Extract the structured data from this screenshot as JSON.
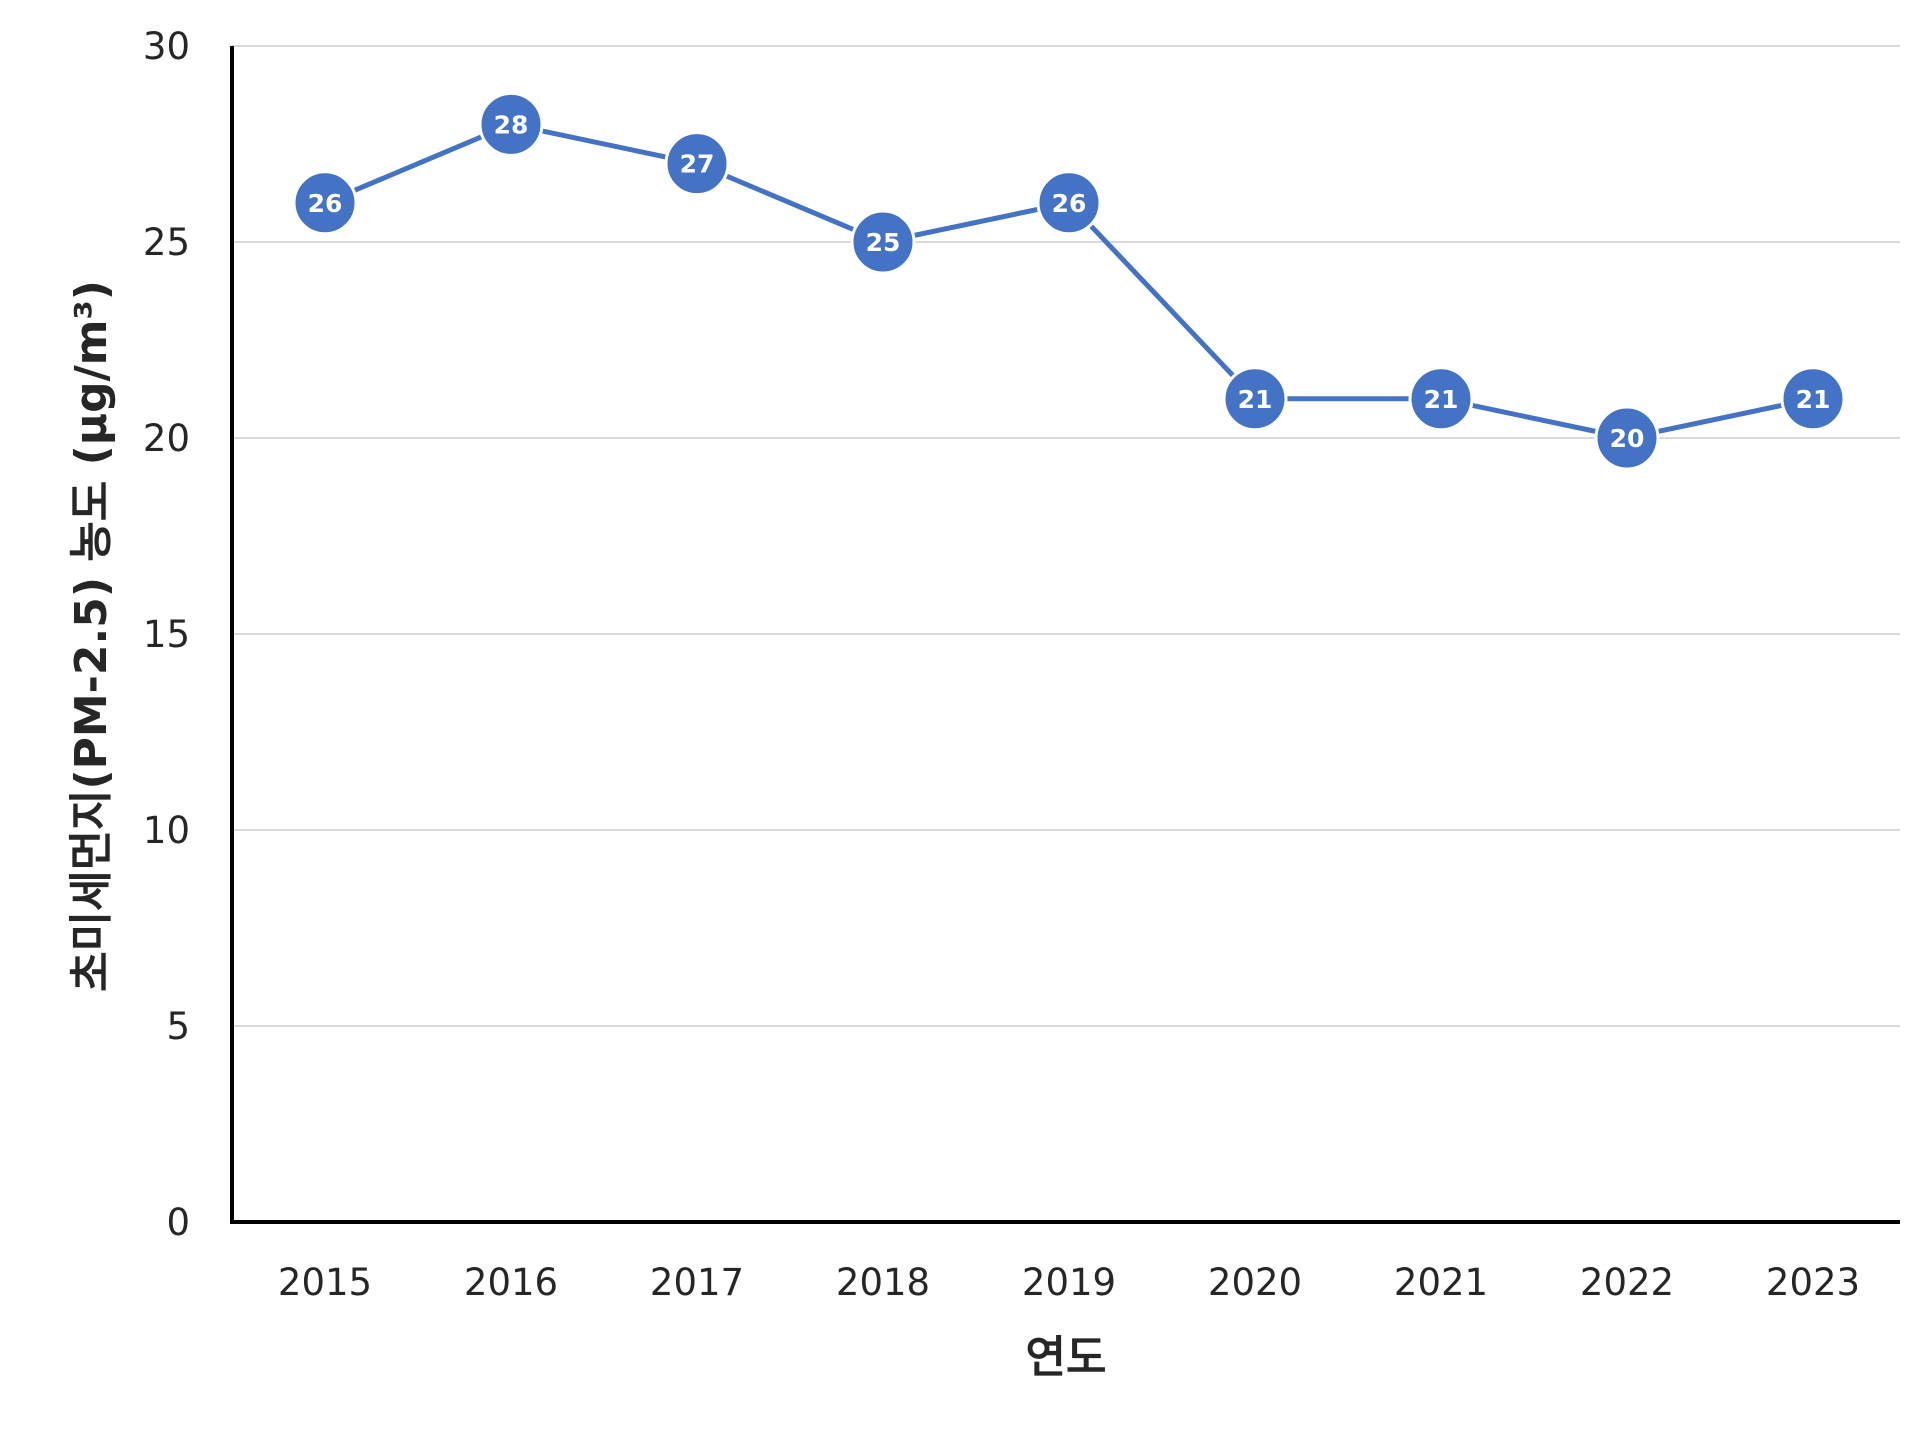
{
  "chart_data": {
    "type": "line",
    "categories": [
      "2015",
      "2016",
      "2017",
      "2018",
      "2019",
      "2020",
      "2021",
      "2022",
      "2023"
    ],
    "series": [
      {
        "values": [
          26,
          28,
          27,
          25,
          26,
          21,
          21,
          20,
          21
        ],
        "data_labels": [
          "26",
          "28",
          "27",
          "25",
          "26",
          "21",
          "21",
          "20",
          "21"
        ],
        "color": "#4472C4"
      }
    ],
    "xlabel": "연도",
    "ylabel": "초미세먼지(PM-2.5) 농도 (μg/m³)",
    "ylim": [
      0,
      30
    ],
    "yticks": [
      0,
      5,
      10,
      15,
      20,
      25,
      30
    ],
    "ytick_labels": [
      "0",
      "5",
      "10",
      "15",
      "20",
      "25",
      "30"
    ],
    "grid": "horizontal",
    "legend": "none"
  }
}
